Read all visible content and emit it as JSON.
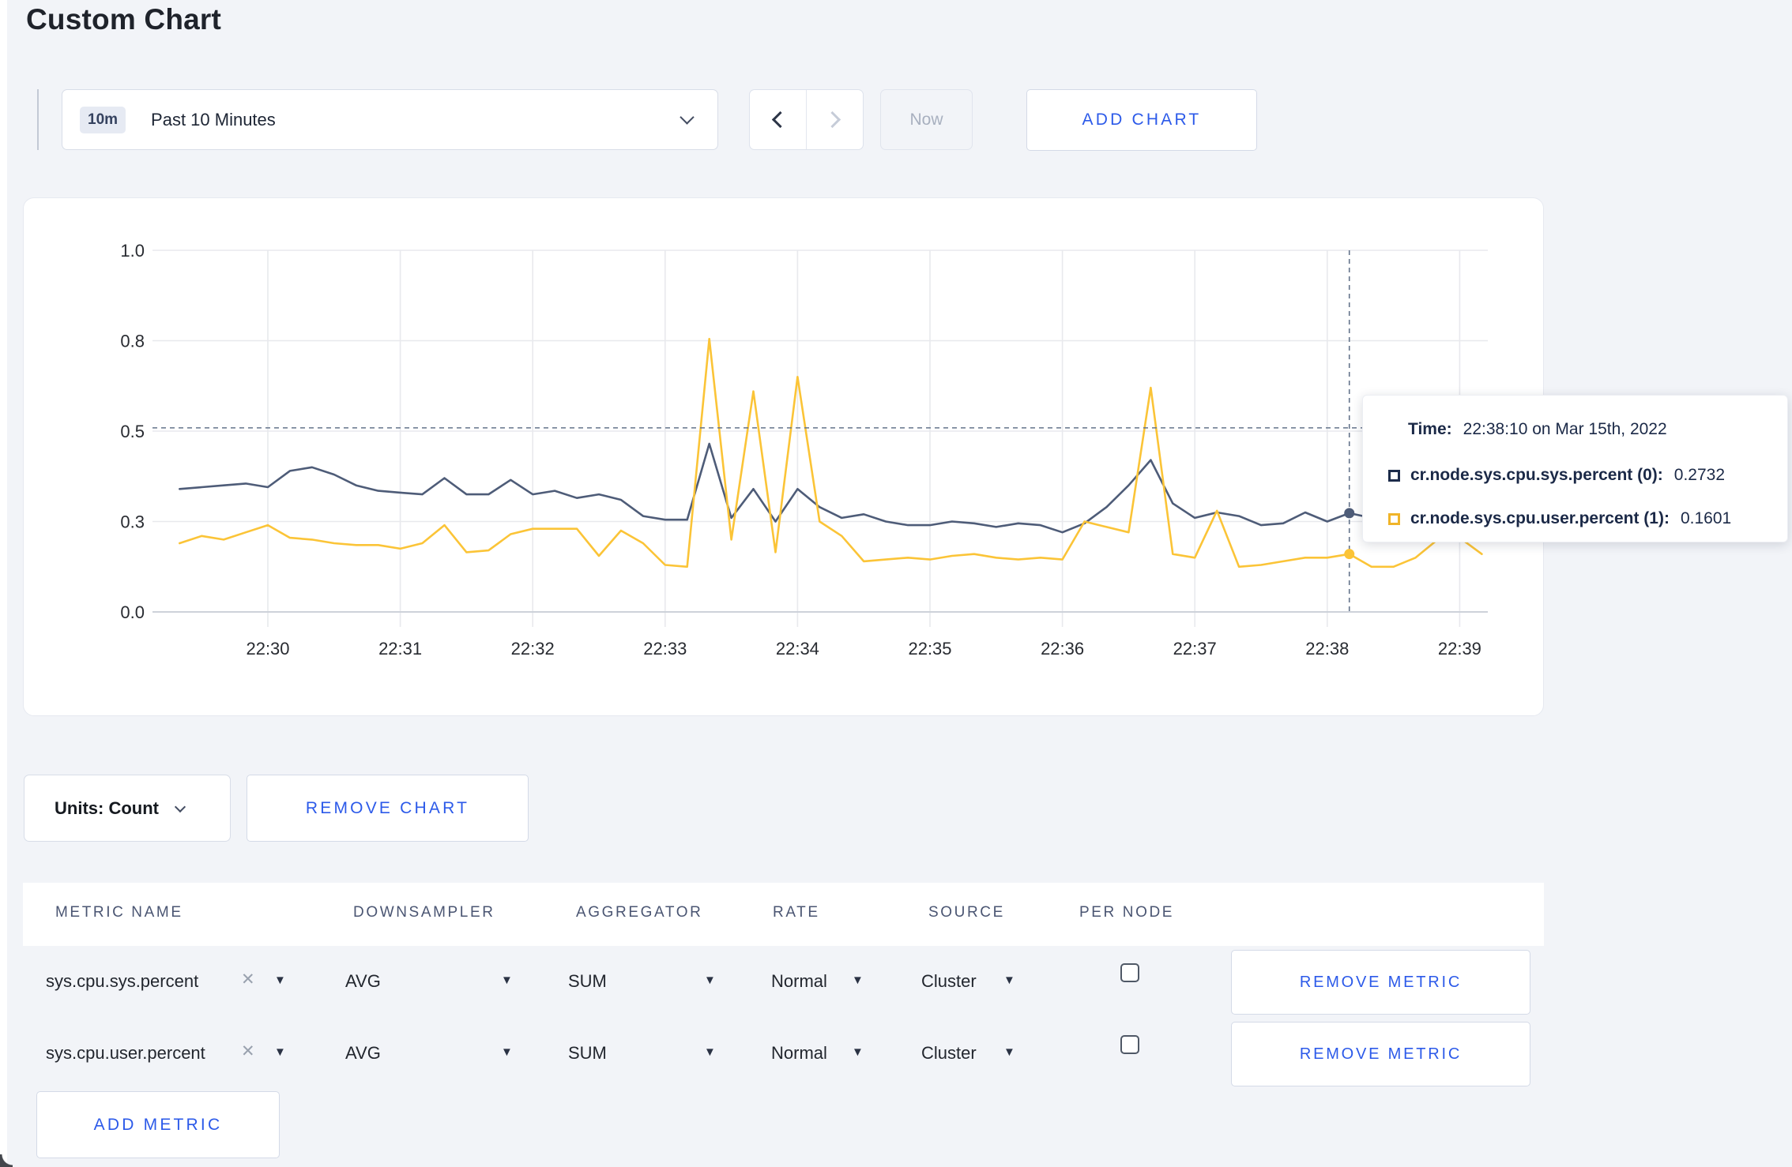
{
  "page": {
    "title": "Custom Chart",
    "background": "#f2f4f8",
    "accent_blue": "#2c5ae9"
  },
  "toolbar": {
    "time_badge": "10m",
    "time_label": "Past 10 Minutes",
    "now_label": "Now",
    "add_chart_label": "ADD CHART"
  },
  "icons": {
    "caret_down": "▼",
    "close": "✕"
  },
  "chart_data": {
    "type": "line",
    "title": "",
    "xlabel": "",
    "ylabel": "",
    "ylim": [
      0,
      1
    ],
    "grid": true,
    "x_ticks": [
      "22:30",
      "22:31",
      "22:32",
      "22:33",
      "22:34",
      "22:35",
      "22:36",
      "22:37",
      "22:38",
      "22:39"
    ],
    "y_ticks": [
      {
        "value": 0.0,
        "label": "0.0"
      },
      {
        "value": 0.25,
        "label": "0.3"
      },
      {
        "value": 0.5,
        "label": "0.5"
      },
      {
        "value": 0.75,
        "label": "0.8"
      },
      {
        "value": 1.0,
        "label": "1.0"
      }
    ],
    "x_start": "22:29:20",
    "x_step_seconds": 10,
    "x_start_offset_min": -0.6667,
    "x_step_min": 0.16667,
    "series": [
      {
        "name": "cr.node.sys.cpu.sys.percent",
        "color": "#4e5c78",
        "values": [
          0.34,
          0.345,
          0.35,
          0.355,
          0.345,
          0.39,
          0.4,
          0.38,
          0.35,
          0.335,
          0.33,
          0.325,
          0.37,
          0.325,
          0.325,
          0.365,
          0.325,
          0.335,
          0.315,
          0.325,
          0.31,
          0.265,
          0.255,
          0.255,
          0.465,
          0.26,
          0.34,
          0.25,
          0.34,
          0.29,
          0.26,
          0.27,
          0.25,
          0.24,
          0.24,
          0.25,
          0.245,
          0.235,
          0.245,
          0.24,
          0.22,
          0.245,
          0.29,
          0.35,
          0.42,
          0.3,
          0.26,
          0.275,
          0.265,
          0.24,
          0.245,
          0.275,
          0.25,
          0.2732,
          0.26,
          0.27,
          0.28,
          0.27,
          0.28,
          0.29
        ]
      },
      {
        "name": "cr.node.sys.cpu.user.percent",
        "color": "#fbc437",
        "values": [
          0.19,
          0.21,
          0.2,
          0.22,
          0.24,
          0.205,
          0.2,
          0.19,
          0.185,
          0.185,
          0.175,
          0.19,
          0.24,
          0.165,
          0.17,
          0.215,
          0.23,
          0.23,
          0.23,
          0.155,
          0.225,
          0.19,
          0.13,
          0.125,
          0.755,
          0.2,
          0.61,
          0.165,
          0.65,
          0.25,
          0.21,
          0.14,
          0.145,
          0.15,
          0.145,
          0.155,
          0.16,
          0.15,
          0.145,
          0.15,
          0.145,
          0.25,
          0.235,
          0.22,
          0.62,
          0.16,
          0.15,
          0.28,
          0.125,
          0.13,
          0.14,
          0.15,
          0.15,
          0.1601,
          0.125,
          0.125,
          0.15,
          0.2,
          0.205,
          0.16
        ]
      }
    ],
    "legend_position": "tooltip",
    "crosshair": {
      "time": "22:38:10",
      "x_min_from_2230": 8.1667,
      "y_line_value": 0.509,
      "dot_values": [
        0.2732,
        0.1601
      ]
    }
  },
  "tooltip": {
    "time_label": "Time:",
    "time_value": "22:38:10 on Mar 15th, 2022",
    "rows": [
      {
        "name": "cr.node.sys.cpu.sys.percent (0):",
        "value": "0.2732",
        "swatch": "#1c2b4a"
      },
      {
        "name": "cr.node.sys.cpu.user.percent (1):",
        "value": "0.1601",
        "swatch": "#f0b429"
      }
    ]
  },
  "chart_controls": {
    "units_label": "Units: Count",
    "remove_chart_label": "REMOVE CHART"
  },
  "metrics_table": {
    "headers": [
      "METRIC NAME",
      "DOWNSAMPLER",
      "AGGREGATOR",
      "RATE",
      "SOURCE",
      "PER NODE"
    ],
    "rows": [
      {
        "metric": "sys.cpu.sys.percent",
        "downsampler": "AVG",
        "aggregator": "SUM",
        "rate": "Normal",
        "source": "Cluster",
        "per_node_checked": false,
        "remove_label": "REMOVE METRIC"
      },
      {
        "metric": "sys.cpu.user.percent",
        "downsampler": "AVG",
        "aggregator": "SUM",
        "rate": "Normal",
        "source": "Cluster",
        "per_node_checked": false,
        "remove_label": "REMOVE METRIC"
      }
    ],
    "add_metric_label": "ADD METRIC"
  }
}
